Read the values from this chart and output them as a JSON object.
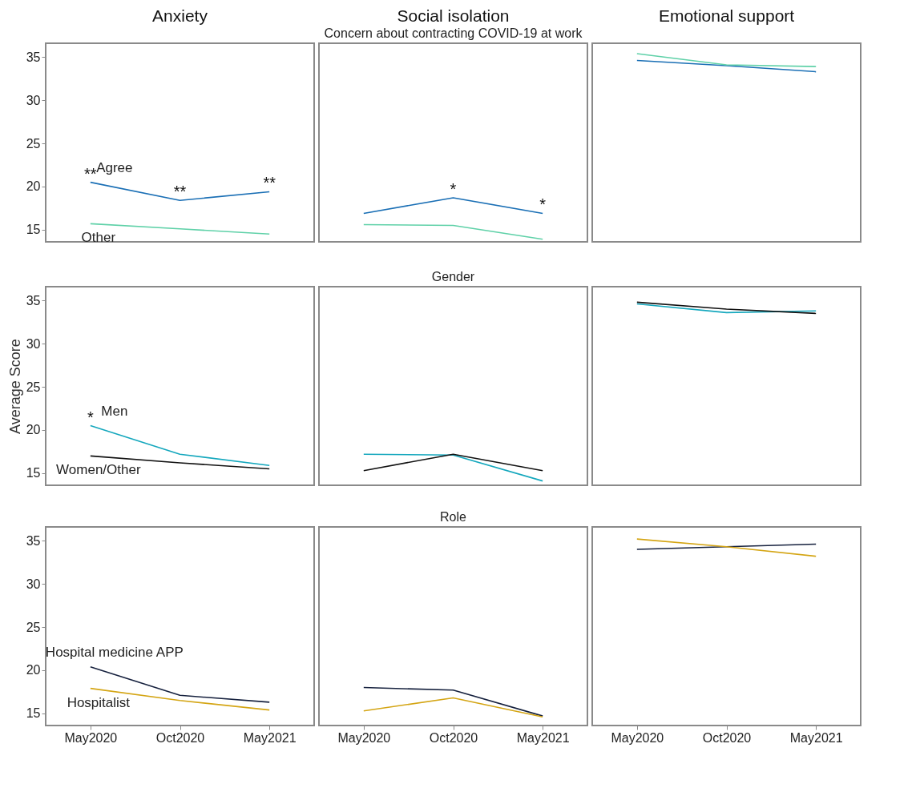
{
  "chart_data": [
    {
      "type": "line",
      "title": "Anxiety",
      "categories": [
        "May2020",
        "Oct2020",
        "May2021"
      ],
      "ylim": [
        13.6,
        36.6
      ],
      "yticks": [
        15,
        20,
        25,
        30,
        35
      ],
      "tick_labels": "y",
      "series": [
        {
          "name": "Agree",
          "color": "#1a6fb5",
          "values": [
            20.5,
            18.4,
            19.4
          ]
        },
        {
          "name": "Other",
          "color": "#5fd1a8",
          "values": [
            15.7,
            15.1,
            14.5
          ]
        }
      ],
      "annotations": [
        {
          "text": "**",
          "x": "May2020",
          "y": 20.5
        },
        {
          "text": "**",
          "x": "Oct2020",
          "y": 18.4
        },
        {
          "text": "**",
          "x": "May2021",
          "y": 19.4
        }
      ]
    },
    {
      "type": "line",
      "title": "Social isolation",
      "subtitle": "Concern about contracting COVID-19 at work",
      "categories": [
        "May2020",
        "Oct2020",
        "May2021"
      ],
      "ylim": [
        13.6,
        36.6
      ],
      "yticks": [
        15,
        20,
        25,
        30,
        35
      ],
      "tick_labels": false,
      "series": [
        {
          "color": "#1a6fb5",
          "values": [
            16.9,
            18.7,
            16.9
          ]
        },
        {
          "color": "#5fd1a8",
          "values": [
            15.6,
            15.5,
            13.9
          ]
        }
      ],
      "annotations": [
        {
          "text": "*",
          "x": "Oct2020",
          "y": 18.7
        },
        {
          "text": "*",
          "x": "May2021",
          "y": 16.9
        }
      ]
    },
    {
      "type": "line",
      "title": "Emotional support",
      "categories": [
        "May2020",
        "Oct2020",
        "May2021"
      ],
      "ylim": [
        13.6,
        36.6
      ],
      "yticks": [
        15,
        20,
        25,
        30,
        35
      ],
      "tick_labels": false,
      "series": [
        {
          "color": "#1a6fb5",
          "values": [
            34.6,
            34.0,
            33.3
          ]
        },
        {
          "color": "#5fd1a8",
          "values": [
            35.4,
            34.1,
            33.9
          ]
        }
      ]
    },
    {
      "type": "line",
      "ylabel": "Average Score",
      "categories": [
        "May2020",
        "Oct2020",
        "May2021"
      ],
      "ylim": [
        13.6,
        36.6
      ],
      "yticks": [
        15,
        20,
        25,
        30,
        35
      ],
      "tick_labels": "y",
      "series": [
        {
          "name": "Men",
          "color": "#14a7bd",
          "values": [
            20.5,
            17.2,
            15.9
          ]
        },
        {
          "name": "Women/Other",
          "color": "#111111",
          "values": [
            17.0,
            16.2,
            15.5
          ]
        }
      ],
      "annotations": [
        {
          "text": "*",
          "x": "May2020",
          "y": 20.5
        }
      ]
    },
    {
      "type": "line",
      "subtitle": "Gender",
      "categories": [
        "May2020",
        "Oct2020",
        "May2021"
      ],
      "ylim": [
        13.6,
        36.6
      ],
      "yticks": [
        15,
        20,
        25,
        30,
        35
      ],
      "tick_labels": false,
      "series": [
        {
          "color": "#14a7bd",
          "values": [
            17.2,
            17.1,
            14.1
          ]
        },
        {
          "color": "#111111",
          "values": [
            15.3,
            17.2,
            15.3
          ]
        }
      ]
    },
    {
      "type": "line",
      "categories": [
        "May2020",
        "Oct2020",
        "May2021"
      ],
      "ylim": [
        13.6,
        36.6
      ],
      "yticks": [
        15,
        20,
        25,
        30,
        35
      ],
      "tick_labels": false,
      "series": [
        {
          "color": "#14a7bd",
          "values": [
            34.6,
            33.6,
            33.8
          ]
        },
        {
          "color": "#111111",
          "values": [
            34.8,
            34.0,
            33.5
          ]
        }
      ]
    },
    {
      "type": "line",
      "categories": [
        "May2020",
        "Oct2020",
        "May2021"
      ],
      "ylim": [
        13.6,
        36.6
      ],
      "yticks": [
        15,
        20,
        25,
        30,
        35
      ],
      "series": [
        {
          "name": "Hospital medicine APP",
          "color": "#16213e",
          "values": [
            20.4,
            17.1,
            16.3
          ]
        },
        {
          "name": "Hospitalist",
          "color": "#d4a514",
          "values": [
            17.9,
            16.5,
            15.4
          ]
        }
      ]
    },
    {
      "type": "line",
      "subtitle": "Role",
      "categories": [
        "May2020",
        "Oct2020",
        "May2021"
      ],
      "ylim": [
        13.6,
        36.6
      ],
      "yticks": [
        15,
        20,
        25,
        30,
        35
      ],
      "tick_labels": "x",
      "series": [
        {
          "color": "#16213e",
          "values": [
            18.0,
            17.7,
            14.7
          ]
        },
        {
          "color": "#d4a514",
          "values": [
            15.3,
            16.8,
            14.6
          ]
        }
      ]
    },
    {
      "type": "line",
      "categories": [
        "May2020",
        "Oct2020",
        "May2021"
      ],
      "ylim": [
        13.6,
        36.6
      ],
      "yticks": [
        15,
        20,
        25,
        30,
        35
      ],
      "tick_labels": "x",
      "series": [
        {
          "color": "#16213e",
          "values": [
            34.0,
            34.3,
            34.6
          ]
        },
        {
          "color": "#d4a514",
          "values": [
            35.2,
            34.3,
            33.2
          ]
        }
      ]
    }
  ]
}
